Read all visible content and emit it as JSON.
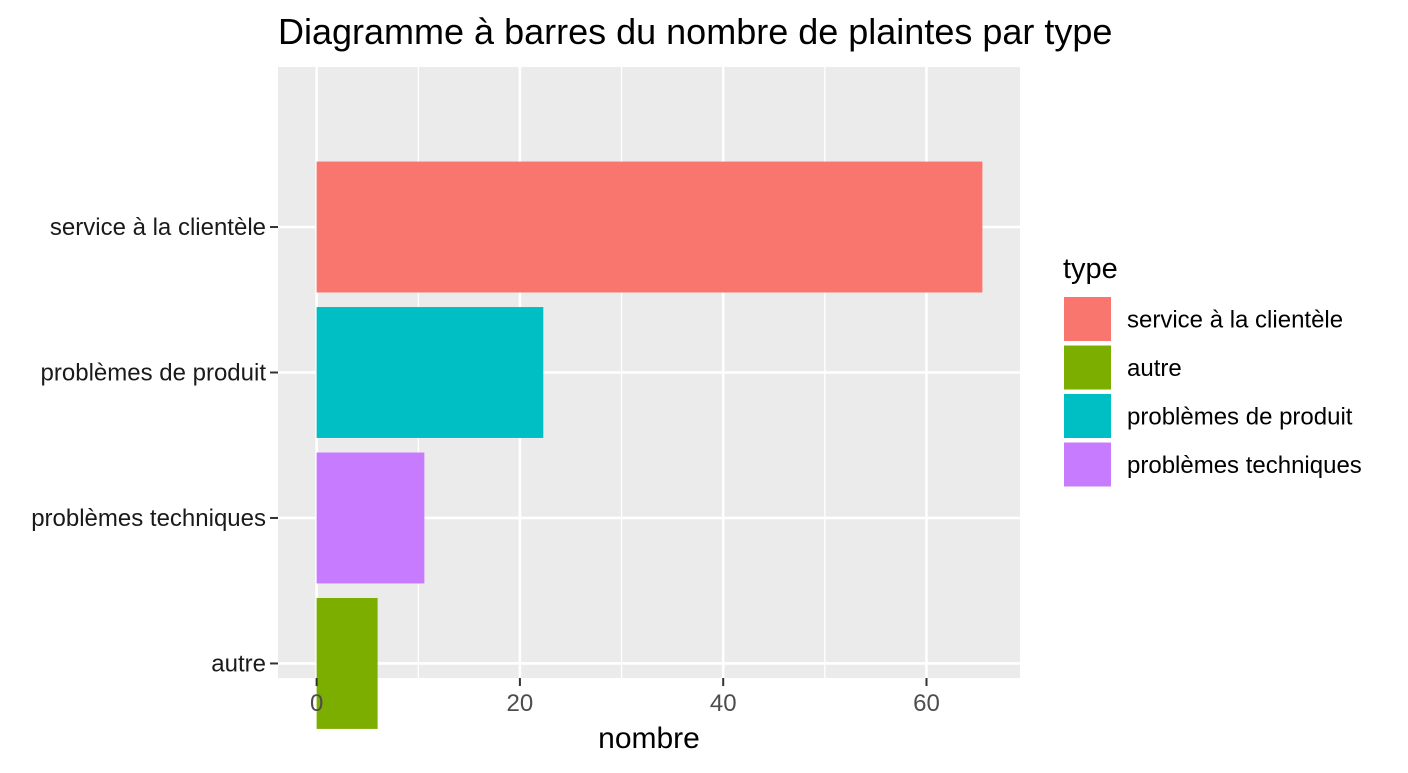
{
  "chart_data": {
    "type": "bar",
    "orientation": "horizontal",
    "title": "Diagramme à barres du nombre de plaintes par type",
    "xlabel": "nombre",
    "ylabel": "",
    "xlim": [
      -3.8,
      69.2
    ],
    "x_ticks": [
      0,
      20,
      40,
      60
    ],
    "x_tick_labels": [
      "0",
      "20",
      "40",
      "60"
    ],
    "grid": true,
    "categories": [
      "service à la clientèle",
      "problèmes de produit",
      "problèmes techniques",
      "autre"
    ],
    "values": [
      65.5,
      22.3,
      10.6,
      6.0
    ],
    "colors": {
      "service à la clientèle": "#F8766D",
      "autre": "#7CAE00",
      "problèmes de produit": "#00BFC4",
      "problèmes techniques": "#C77CFF"
    },
    "panel_background": "#EBEBEB",
    "legend": {
      "title": "type",
      "position": "right",
      "entries": [
        "service à la clientèle",
        "autre",
        "problèmes de produit",
        "problèmes techniques"
      ]
    }
  }
}
